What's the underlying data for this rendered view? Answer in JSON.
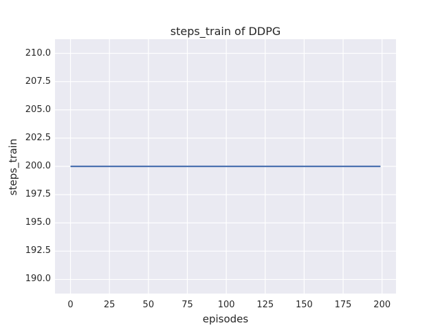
{
  "style": {
    "figure_bg": "#ffffff",
    "plot_bg": "#eaeaf2",
    "grid_color": "#ffffff",
    "text_color": "#262626",
    "line_color": "#4c72b0"
  },
  "chart_data": {
    "type": "line",
    "title": "steps_train of DDPG",
    "xlabel": "episodes",
    "ylabel": "steps_train",
    "grid": true,
    "legend": null,
    "xlim": [
      -9.95,
      208.95
    ],
    "ylim": [
      188.75,
      211.25
    ],
    "x_tick_values": [
      0,
      25,
      50,
      75,
      100,
      125,
      150,
      175,
      200
    ],
    "x_tick_labels": [
      "0",
      "25",
      "50",
      "75",
      "100",
      "125",
      "150",
      "175",
      "200"
    ],
    "y_tick_values": [
      190.0,
      192.5,
      195.0,
      197.5,
      200.0,
      202.5,
      205.0,
      207.5,
      210.0
    ],
    "y_tick_labels": [
      "190.0",
      "192.5",
      "195.0",
      "197.5",
      "200.0",
      "202.5",
      "205.0",
      "207.5",
      "210.0"
    ],
    "series": [
      {
        "name": "steps_train",
        "color": "#4c72b0",
        "x": [
          0,
          199
        ],
        "y": [
          200,
          200
        ],
        "description": "constant value 200 for all episodes 0-199"
      }
    ]
  }
}
